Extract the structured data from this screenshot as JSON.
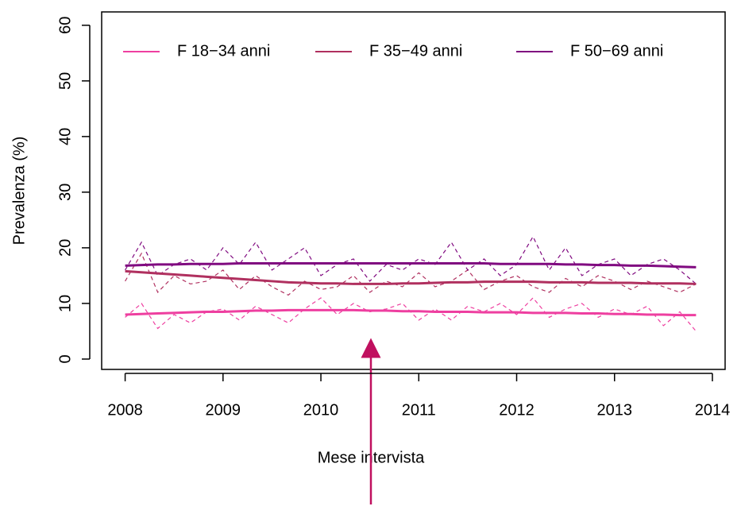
{
  "chart_data": {
    "type": "line",
    "x_label": "Mese intervista",
    "y_label": "Prevalenza (%)",
    "x": [
      2008.0,
      2008.167,
      2008.333,
      2008.5,
      2008.667,
      2008.833,
      2009.0,
      2009.167,
      2009.333,
      2009.5,
      2009.667,
      2009.833,
      2010.0,
      2010.167,
      2010.333,
      2010.5,
      2010.667,
      2010.833,
      2011.0,
      2011.167,
      2011.333,
      2011.5,
      2011.667,
      2011.833,
      2012.0,
      2012.167,
      2012.333,
      2012.5,
      2012.667,
      2012.833,
      2013.0,
      2013.167,
      2013.333,
      2013.5,
      2013.667,
      2013.833
    ],
    "series": [
      {
        "name": "F 18−34 anni",
        "color": "#ee3fa0",
        "values": [
          8.0,
          8.1,
          8.2,
          8.3,
          8.4,
          8.5,
          8.5,
          8.6,
          8.7,
          8.7,
          8.8,
          8.8,
          8.8,
          8.8,
          8.8,
          8.7,
          8.7,
          8.6,
          8.6,
          8.5,
          8.5,
          8.5,
          8.4,
          8.4,
          8.4,
          8.3,
          8.3,
          8.3,
          8.2,
          8.2,
          8.1,
          8.1,
          8.0,
          8.0,
          7.9,
          7.9
        ],
        "raw_values": [
          7.5,
          10,
          5.5,
          8,
          6.5,
          8.5,
          9,
          7,
          9.5,
          8,
          6.5,
          9,
          11,
          8,
          10,
          8.5,
          9,
          10,
          7,
          9,
          7,
          9.5,
          8.5,
          10,
          8,
          11,
          7.5,
          9,
          10,
          7.5,
          9,
          8,
          9.5,
          6,
          8.5,
          5
        ]
      },
      {
        "name": "F 35−49 anni",
        "color": "#b0305f",
        "values": [
          15.8,
          15.6,
          15.4,
          15.2,
          15.0,
          14.8,
          14.6,
          14.4,
          14.2,
          14.0,
          13.8,
          13.7,
          13.6,
          13.6,
          13.5,
          13.5,
          13.5,
          13.6,
          13.6,
          13.7,
          13.8,
          13.8,
          13.9,
          13.9,
          13.9,
          13.9,
          13.8,
          13.8,
          13.8,
          13.7,
          13.7,
          13.7,
          13.6,
          13.6,
          13.6,
          13.5
        ],
        "raw_values": [
          14,
          19,
          12,
          15,
          13.5,
          14,
          16,
          12.5,
          15,
          13,
          11.5,
          14,
          12.5,
          13,
          15,
          12,
          14,
          13,
          15.5,
          13,
          14,
          16,
          12.5,
          14,
          15,
          13,
          12,
          14.5,
          13,
          15,
          14,
          12.5,
          14,
          13,
          12,
          13.5
        ]
      },
      {
        "name": "F 50−69 anni",
        "color": "#800a80",
        "values": [
          16.8,
          16.9,
          17.0,
          17.0,
          17.1,
          17.1,
          17.1,
          17.2,
          17.2,
          17.2,
          17.2,
          17.2,
          17.2,
          17.2,
          17.2,
          17.2,
          17.2,
          17.2,
          17.2,
          17.2,
          17.2,
          17.2,
          17.2,
          17.1,
          17.1,
          17.1,
          17.1,
          17.0,
          17.0,
          16.9,
          16.9,
          16.8,
          16.8,
          16.7,
          16.6,
          16.5
        ],
        "raw_values": [
          16,
          21,
          15,
          17,
          18,
          16,
          20,
          17,
          21,
          16,
          18,
          20,
          15,
          17,
          18,
          14,
          17,
          16,
          18,
          17,
          21,
          16,
          18,
          15,
          17,
          22,
          16,
          20,
          15,
          17,
          18,
          15,
          17,
          18,
          16,
          13.5
        ]
      }
    ],
    "xlim": [
      2007.76,
      2014.13
    ],
    "xticks": [
      2008,
      2009,
      2010,
      2011,
      2012,
      2013,
      2014
    ],
    "ylim": [
      -1.86,
      62.4
    ],
    "yticks": [
      0,
      10,
      20,
      30,
      40,
      50,
      60
    ],
    "legend": "top"
  }
}
